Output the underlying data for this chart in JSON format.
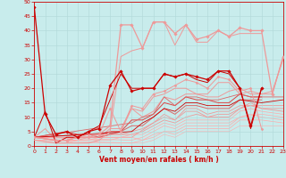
{
  "bg_color": "#c8ecec",
  "grid_color": "#b0d8d8",
  "xlabel": "Vent moyen/en rafales ( km/h )",
  "ylim": [
    0,
    50
  ],
  "xlim": [
    0,
    23
  ],
  "yticks": [
    0,
    5,
    10,
    15,
    20,
    25,
    30,
    35,
    40,
    45,
    50
  ],
  "xticks": [
    0,
    1,
    2,
    3,
    4,
    5,
    6,
    7,
    8,
    9,
    10,
    11,
    12,
    13,
    14,
    15,
    16,
    17,
    18,
    19,
    20,
    21,
    22,
    23
  ],
  "series": [
    {
      "x": [
        0,
        1,
        2,
        3,
        4,
        5,
        6,
        7,
        8,
        9,
        10,
        11,
        12,
        13,
        14,
        15,
        16,
        17,
        18,
        19,
        20,
        21
      ],
      "y": [
        48,
        11,
        4,
        5,
        3,
        5,
        6,
        21,
        26,
        19,
        20,
        20,
        25,
        24,
        25,
        24,
        23,
        26,
        26,
        20,
        7,
        20
      ],
      "color": "#cc0000",
      "lw": 0.9,
      "marker": "D",
      "ms": 1.8,
      "zorder": 5
    },
    {
      "x": [
        0,
        2,
        3,
        4,
        5,
        6,
        7,
        8,
        9,
        10,
        11,
        12,
        13,
        14,
        15,
        16,
        17,
        18,
        19,
        20,
        21,
        22,
        23
      ],
      "y": [
        3,
        2,
        2,
        3,
        3,
        4,
        7,
        42,
        42,
        34,
        43,
        43,
        39,
        42,
        37,
        38,
        40,
        38,
        41,
        40,
        40,
        18,
        31
      ],
      "color": "#ee9999",
      "lw": 0.9,
      "marker": "D",
      "ms": 1.8,
      "zorder": 4
    },
    {
      "x": [
        0,
        2,
        3,
        4,
        5,
        6,
        7,
        8,
        9,
        10,
        11,
        12,
        13,
        14,
        15,
        16,
        17,
        18,
        19,
        20,
        21,
        22,
        23
      ],
      "y": [
        2,
        1,
        1,
        1,
        1,
        2,
        5,
        31,
        33,
        34,
        43,
        43,
        35,
        42,
        36,
        36,
        40,
        38,
        39,
        39,
        39,
        null,
        31
      ],
      "color": "#ee9999",
      "lw": 0.7,
      "marker": null,
      "ms": 0,
      "zorder": 3
    },
    {
      "x": [
        0,
        1,
        2,
        3,
        4,
        5,
        6,
        7,
        8,
        9,
        10,
        11,
        12,
        13,
        14,
        15,
        16,
        17,
        18,
        19,
        20,
        21
      ],
      "y": [
        3,
        12,
        1,
        3,
        3,
        5,
        7,
        16,
        25,
        20,
        20,
        20,
        25,
        24,
        25,
        23,
        22,
        26,
        25,
        20,
        6,
        20
      ],
      "color": "#cc0000",
      "lw": 0.7,
      "marker": null,
      "ms": 0,
      "zorder": 3
    },
    {
      "x": [
        0,
        2,
        3,
        4,
        5,
        6,
        7,
        8,
        9,
        10,
        11,
        12,
        13,
        14,
        15,
        16,
        17,
        18,
        19,
        20,
        21
      ],
      "y": [
        3,
        2,
        2,
        3,
        4,
        4,
        13,
        5,
        14,
        13,
        18,
        19,
        21,
        23,
        22,
        20,
        24,
        23,
        19,
        20,
        6
      ],
      "color": "#ee9999",
      "lw": 0.7,
      "marker": "D",
      "ms": 1.5,
      "zorder": 3
    },
    {
      "x": [
        0,
        2,
        3,
        4,
        5,
        6,
        7,
        8,
        9,
        10,
        11,
        12,
        13,
        14,
        15,
        16,
        17,
        18,
        19,
        20,
        22,
        23
      ],
      "y": [
        3,
        2,
        2,
        3,
        3,
        3,
        5,
        5,
        13,
        10,
        12,
        17,
        16,
        18,
        18,
        17,
        17,
        19,
        20,
        18,
        18,
        31
      ],
      "color": "#ee9999",
      "lw": 0.7,
      "marker": null,
      "ms": 0,
      "zorder": 2
    },
    {
      "x": [
        0,
        1,
        2,
        3,
        4,
        5,
        6,
        7,
        8,
        9,
        10,
        11,
        12,
        13,
        14,
        15,
        16,
        17,
        18,
        19,
        20,
        21,
        22,
        23
      ],
      "y": [
        3,
        6,
        2,
        2,
        3,
        3,
        3,
        6,
        6,
        13,
        12,
        17,
        18,
        20,
        20,
        18,
        18,
        22,
        22,
        18,
        19,
        18,
        19,
        30
      ],
      "color": "#ee9999",
      "lw": 0.7,
      "marker": null,
      "ms": 0,
      "zorder": 2
    },
    {
      "x": [
        0,
        3,
        4,
        5,
        6,
        7,
        8,
        9,
        10,
        11,
        12,
        13,
        14,
        15,
        16,
        17,
        18,
        19,
        20,
        21
      ],
      "y": [
        3,
        5,
        4,
        4,
        4,
        5,
        5,
        9,
        9,
        11,
        15,
        14,
        17,
        16,
        16,
        15,
        15,
        18,
        17,
        17
      ],
      "color": "#dd4444",
      "lw": 0.7,
      "marker": null,
      "ms": 0,
      "zorder": 2
    },
    {
      "x": [
        0,
        5,
        6,
        7,
        8,
        9,
        10,
        11,
        12,
        13,
        14,
        15,
        16,
        17,
        18,
        19,
        20,
        21
      ],
      "y": [
        3,
        4,
        3,
        4,
        5,
        7,
        7,
        10,
        13,
        11,
        14,
        14,
        13,
        13,
        13,
        16,
        16,
        16
      ],
      "color": "#dd6666",
      "lw": 0.7,
      "marker": null,
      "ms": 0,
      "zorder": 2
    },
    {
      "x": [
        0,
        9,
        10,
        11,
        12,
        13,
        14,
        15,
        16,
        17,
        18,
        19,
        20,
        22,
        23
      ],
      "y": [
        3,
        8,
        10,
        11,
        17,
        14,
        17,
        17,
        16,
        16,
        17,
        18,
        17,
        17,
        17
      ],
      "color": "#dd6666",
      "lw": 0.6,
      "marker": null,
      "ms": 0,
      "zorder": 2
    },
    {
      "x": [
        0,
        9,
        10,
        11,
        12,
        13,
        14,
        15,
        16,
        17,
        18,
        19,
        21,
        23
      ],
      "y": [
        3,
        5,
        8,
        10,
        13,
        12,
        15,
        15,
        14,
        14,
        14,
        16,
        15,
        16
      ],
      "color": "#cc0000",
      "lw": 0.6,
      "marker": null,
      "ms": 0,
      "zorder": 2
    },
    {
      "x": [
        0,
        2,
        3,
        4,
        5,
        6,
        7,
        8,
        9,
        10,
        11,
        12,
        13,
        14,
        15,
        16,
        17,
        18,
        19,
        20,
        21,
        23
      ],
      "y": [
        3,
        2,
        2,
        2,
        3,
        3,
        4,
        4,
        5,
        6,
        8,
        10,
        9,
        12,
        12,
        10,
        11,
        11,
        13,
        15,
        13,
        13
      ],
      "color": "#ee9999",
      "lw": 0.6,
      "marker": null,
      "ms": 0,
      "zorder": 1
    },
    {
      "x": [
        0,
        5,
        6,
        7,
        8,
        9,
        10,
        11,
        12,
        13,
        14,
        15,
        16,
        17,
        18,
        19,
        20,
        21,
        23
      ],
      "y": [
        3,
        3,
        3,
        4,
        4,
        4,
        5,
        7,
        9,
        8,
        10,
        11,
        10,
        10,
        10,
        13,
        14,
        13,
        12
      ],
      "color": "#ee9999",
      "lw": 0.6,
      "marker": null,
      "ms": 0,
      "zorder": 1
    },
    {
      "x": [
        0,
        9,
        11,
        12,
        13,
        14,
        15,
        16,
        17,
        18,
        19,
        21,
        23
      ],
      "y": [
        3,
        3,
        8,
        11,
        9,
        13,
        13,
        11,
        12,
        12,
        14,
        14,
        14
      ],
      "color": "#ee9999",
      "lw": 0.6,
      "marker": null,
      "ms": 0,
      "zorder": 1
    },
    {
      "x": [
        0,
        2,
        3,
        4,
        5,
        6,
        7,
        8,
        9,
        10,
        11,
        12,
        13,
        14,
        15,
        16,
        17,
        18,
        19,
        20,
        21,
        23
      ],
      "y": [
        2,
        1,
        1,
        2,
        2,
        3,
        3,
        3,
        4,
        4,
        6,
        8,
        7,
        9,
        9,
        9,
        9,
        9,
        12,
        13,
        12,
        11
      ],
      "color": "#ffaaaa",
      "lw": 0.5,
      "marker": null,
      "ms": 0,
      "zorder": 1
    },
    {
      "x": [
        0,
        6,
        7,
        8,
        9,
        10,
        11,
        12,
        13,
        14,
        15,
        16,
        17,
        18,
        19,
        20,
        21,
        23
      ],
      "y": [
        2,
        2,
        2,
        3,
        3,
        2,
        4,
        5,
        5,
        7,
        7,
        7,
        7,
        7,
        10,
        11,
        10,
        9
      ],
      "color": "#ffaaaa",
      "lw": 0.5,
      "marker": null,
      "ms": 0,
      "zorder": 1
    },
    {
      "x": [
        0,
        9,
        10,
        11,
        12,
        13,
        14,
        15,
        16,
        17,
        18,
        19,
        21,
        23
      ],
      "y": [
        3,
        2,
        3,
        5,
        7,
        6,
        8,
        8,
        8,
        8,
        8,
        10,
        11,
        10
      ],
      "color": "#ffaaaa",
      "lw": 0.5,
      "marker": null,
      "ms": 0,
      "zorder": 1
    },
    {
      "x": [
        0,
        9,
        10,
        11,
        12,
        13,
        14,
        15,
        16,
        17,
        18,
        19,
        21,
        23
      ],
      "y": [
        2,
        1,
        2,
        3,
        5,
        4,
        6,
        6,
        6,
        6,
        6,
        9,
        9,
        8
      ],
      "color": "#ffaaaa",
      "lw": 0.5,
      "marker": null,
      "ms": 0,
      "zorder": 1
    },
    {
      "x": [
        0,
        9,
        10,
        11,
        12,
        13,
        14,
        15,
        16,
        17,
        18,
        19,
        21,
        23
      ],
      "y": [
        1,
        1,
        1,
        2,
        4,
        3,
        5,
        5,
        5,
        5,
        5,
        7,
        7,
        7
      ],
      "color": "#ffaaaa",
      "lw": 0.4,
      "marker": null,
      "ms": 0,
      "zorder": 1
    }
  ]
}
